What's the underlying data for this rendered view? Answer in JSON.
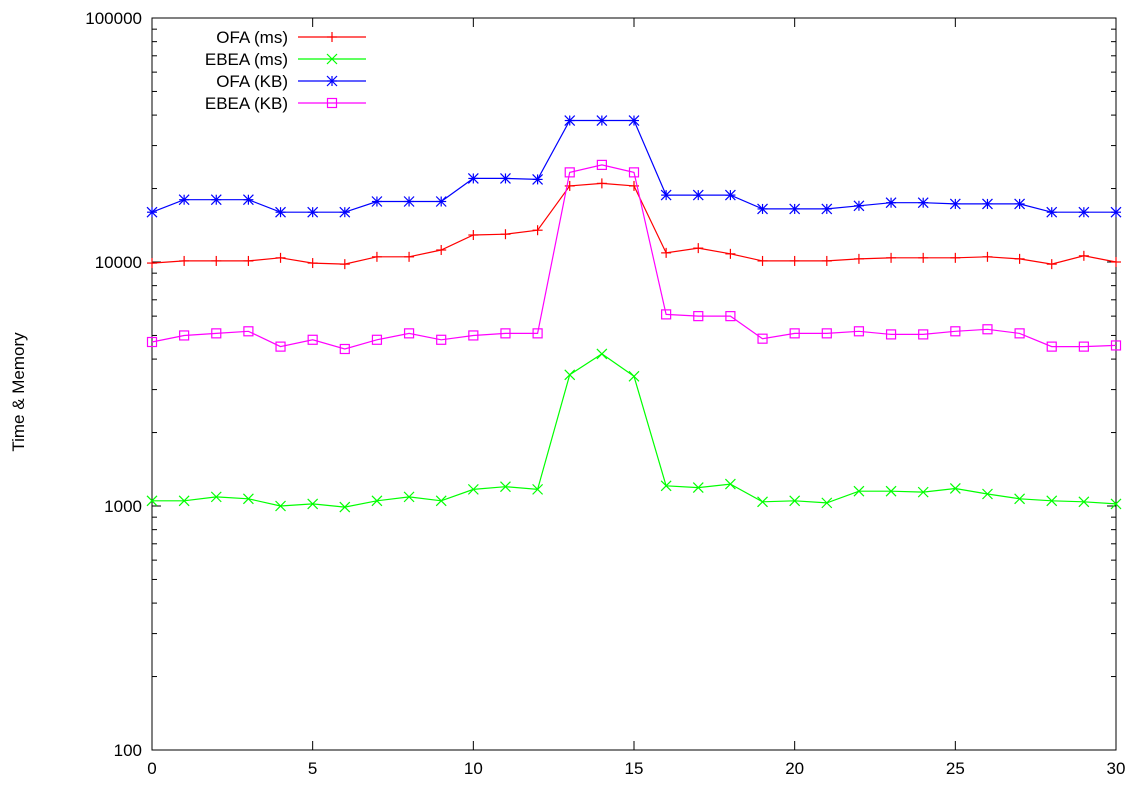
{
  "chart_data": {
    "type": "line",
    "title": "",
    "xlabel": "",
    "ylabel": "Time & Memory",
    "x": [
      0,
      1,
      2,
      3,
      4,
      5,
      6,
      7,
      8,
      9,
      10,
      11,
      12,
      13,
      14,
      15,
      16,
      17,
      18,
      19,
      20,
      21,
      22,
      23,
      24,
      25,
      26,
      27,
      28,
      29,
      30
    ],
    "xlim": [
      0,
      30
    ],
    "ylim": [
      100,
      100000
    ],
    "yscale": "log",
    "xticks": [
      "0",
      "5",
      "10",
      "15",
      "20",
      "25",
      "30"
    ],
    "xtick_values": [
      0,
      5,
      10,
      15,
      20,
      25,
      30
    ],
    "yticks": [
      "100",
      "1000",
      "10000",
      "100000"
    ],
    "ytick_values": [
      100,
      1000,
      10000,
      100000
    ],
    "grid": false,
    "legend_position": "top-left",
    "series": [
      {
        "name": "OFA (ms)",
        "color": "#ff0000",
        "marker": "plus",
        "values": [
          9900,
          10100,
          10100,
          10100,
          10400,
          9900,
          9800,
          10500,
          10500,
          11200,
          12900,
          13000,
          13500,
          20500,
          21000,
          20500,
          10900,
          11400,
          10800,
          10100,
          10100,
          10100,
          10300,
          10400,
          10400,
          10400,
          10500,
          10300,
          9800,
          10600,
          10000
        ]
      },
      {
        "name": "EBEA (ms)",
        "color": "#00ff00",
        "marker": "x",
        "values": [
          1050,
          1050,
          1090,
          1070,
          1000,
          1020,
          990,
          1050,
          1090,
          1050,
          1170,
          1200,
          1170,
          3450,
          4200,
          3400,
          1210,
          1190,
          1230,
          1040,
          1050,
          1030,
          1150,
          1150,
          1140,
          1180,
          1120,
          1070,
          1050,
          1040,
          1020
        ]
      },
      {
        "name": "OFA (KB)",
        "color": "#0000ff",
        "marker": "star",
        "values": [
          16000,
          18000,
          18000,
          18000,
          16000,
          16000,
          16000,
          17700,
          17700,
          17700,
          22000,
          22000,
          21800,
          38000,
          38000,
          38000,
          18800,
          18800,
          18800,
          16500,
          16500,
          16500,
          17000,
          17500,
          17500,
          17300,
          17300,
          17300,
          16000,
          16000,
          16000
        ]
      },
      {
        "name": "EBEA (KB)",
        "color": "#ff00ff",
        "marker": "square",
        "values": [
          4700,
          5000,
          5100,
          5200,
          4500,
          4800,
          4400,
          4800,
          5100,
          4800,
          5000,
          5100,
          5100,
          23300,
          25000,
          23300,
          6100,
          6000,
          6000,
          4850,
          5100,
          5100,
          5200,
          5050,
          5050,
          5200,
          5300,
          5100,
          4500,
          4500,
          4550
        ]
      }
    ]
  }
}
